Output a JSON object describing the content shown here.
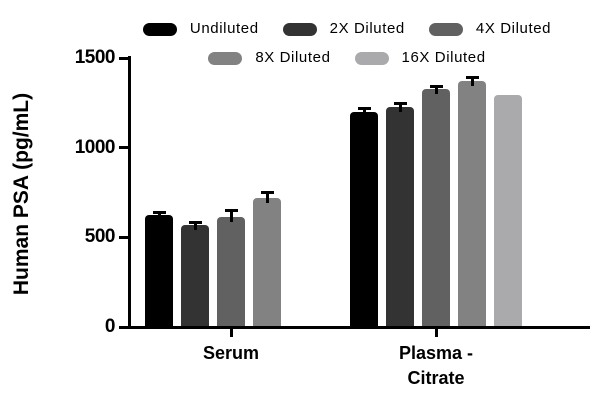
{
  "figure": {
    "background_color": "#ffffff",
    "axis_color": "#000000",
    "error_bar_color": "#000000"
  },
  "chart_data": {
    "type": "bar",
    "title": "",
    "xlabel": "",
    "ylabel": "Human PSA (pg/mL)",
    "ylim": [
      0,
      1500
    ],
    "yticks": [
      0,
      500,
      1000,
      1500
    ],
    "ytick_labels": [
      "0",
      "500",
      "1000",
      "1500"
    ],
    "grid": false,
    "legend": {
      "position": "top",
      "row_split": 3
    },
    "categories": [
      "Serum",
      "Plasma - Citrate"
    ],
    "category_display_lines": [
      [
        "Serum"
      ],
      [
        "Plasma -",
        "Citrate"
      ]
    ],
    "series": [
      {
        "name": "Undiluted",
        "color": "#000000",
        "values": [
          625,
          1200
        ],
        "errors": [
          12,
          17
        ]
      },
      {
        "name": "2X Diluted",
        "color": "#333333",
        "values": [
          570,
          1225
        ],
        "errors": [
          12,
          19
        ]
      },
      {
        "name": "4X Diluted",
        "color": "#616161",
        "values": [
          615,
          1325
        ],
        "errors": [
          35,
          17
        ]
      },
      {
        "name": "8X Diluted",
        "color": "#828282",
        "values": [
          720,
          1370
        ],
        "errors": [
          32,
          22
        ]
      },
      {
        "name": "16X Diluted",
        "color": "#aaaaad",
        "values": [
          null,
          1295
        ],
        "errors": [
          null,
          0
        ]
      }
    ]
  }
}
